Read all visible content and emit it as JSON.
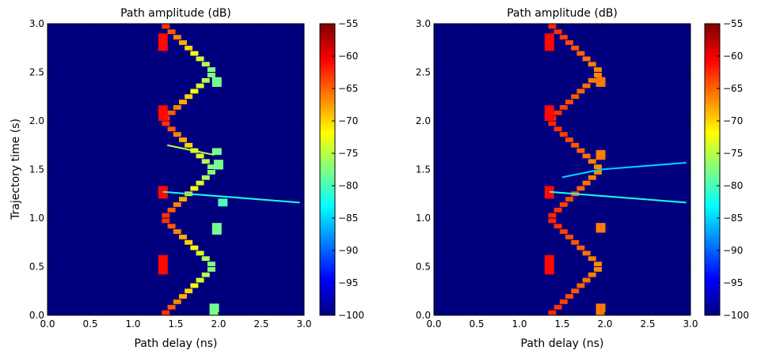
{
  "chart_data": [
    {
      "type": "heatmap",
      "title": "Path amplitude (dB)",
      "xlabel": "Path delay (ns)",
      "ylabel": "Trajectory time (s)",
      "xlim": [
        0.0,
        3.0
      ],
      "ylim": [
        0.0,
        3.0
      ],
      "xticks": [
        "0.0",
        "0.5",
        "1.0",
        "1.5",
        "2.0",
        "2.5",
        "3.0"
      ],
      "yticks": [
        "0.0",
        "0.5",
        "1.0",
        "1.5",
        "2.0",
        "2.5",
        "3.0"
      ],
      "background_db": -100,
      "colorbar": {
        "min": -100,
        "max": -55,
        "ticks": [
          "-55",
          "-60",
          "-65",
          "-70",
          "-75",
          "-80",
          "-85",
          "-90",
          "-95",
          "-100"
        ],
        "colormap": "jet"
      },
      "segments": [
        {
          "delay": [
            1.35,
            1.95
          ],
          "time": [
            0.0,
            0.5
          ],
          "db_start": -62,
          "db_end": -78
        },
        {
          "delay": [
            1.95,
            1.35
          ],
          "time": [
            0.5,
            1.0
          ],
          "db_start": -78,
          "db_end": -62
        },
        {
          "delay": [
            1.35,
            1.95
          ],
          "time": [
            1.0,
            1.5
          ],
          "db_start": -62,
          "db_end": -78
        },
        {
          "delay": [
            1.95,
            1.35
          ],
          "time": [
            1.5,
            2.0
          ],
          "db_start": -78,
          "db_end": -62
        },
        {
          "delay": [
            1.35,
            1.95
          ],
          "time": [
            2.0,
            2.5
          ],
          "db_start": -62,
          "db_end": -78
        },
        {
          "delay": [
            1.95,
            1.35
          ],
          "time": [
            2.5,
            3.0
          ],
          "db_start": -78,
          "db_end": -62
        }
      ],
      "blocks": [
        {
          "delay": 1.35,
          "time": [
            0.42,
            0.62
          ],
          "db": -61
        },
        {
          "delay": 1.35,
          "time": [
            1.2,
            1.33
          ],
          "db": -61
        },
        {
          "delay": 1.35,
          "time": [
            2.0,
            2.16
          ],
          "db": -61
        },
        {
          "delay": 1.35,
          "time": [
            2.72,
            2.9
          ],
          "db": -61
        },
        {
          "delay": 1.95,
          "time": [
            0.0,
            0.12
          ],
          "db": -78
        },
        {
          "delay": 1.98,
          "time": [
            0.83,
            0.95
          ],
          "db": -78
        },
        {
          "delay": 2.05,
          "time": [
            1.12,
            1.2
          ],
          "db": -80
        },
        {
          "delay": 2.0,
          "time": [
            1.5,
            1.6
          ],
          "db": -78
        },
        {
          "delay": 1.98,
          "time": [
            1.65,
            1.72
          ],
          "db": -78
        },
        {
          "delay": 1.98,
          "time": [
            2.35,
            2.45
          ],
          "db": -78
        }
      ],
      "streaks": [
        {
          "points": [
            [
              1.35,
              1.27
            ],
            [
              2.95,
              1.16
            ]
          ],
          "db": -82,
          "dashed_from": 2.2
        },
        {
          "points": [
            [
              1.4,
              1.75
            ],
            [
              1.95,
              1.65
            ]
          ],
          "db": -75
        }
      ]
    },
    {
      "type": "heatmap",
      "title": "Path amplitude (dB)",
      "xlabel": "Path delay (ns)",
      "ylabel": "",
      "xlim": [
        0.0,
        3.0
      ],
      "ylim": [
        0.0,
        3.0
      ],
      "xticks": [
        "0.0",
        "0.5",
        "1.0",
        "1.5",
        "2.0",
        "2.5",
        "3.0"
      ],
      "yticks": [
        "0.0",
        "0.5",
        "1.0",
        "1.5",
        "2.0",
        "2.5",
        "3.0"
      ],
      "background_db": -100,
      "colorbar": {
        "min": -100,
        "max": -55,
        "ticks": [
          "-55",
          "-60",
          "-65",
          "-70",
          "-75",
          "-80",
          "-85",
          "-90",
          "-95",
          "-100"
        ],
        "colormap": "jet"
      },
      "segments": [
        {
          "delay": [
            1.35,
            1.95
          ],
          "time": [
            0.0,
            0.5
          ],
          "db_start": -62,
          "db_end": -67
        },
        {
          "delay": [
            1.95,
            1.35
          ],
          "time": [
            0.5,
            1.0
          ],
          "db_start": -67,
          "db_end": -62
        },
        {
          "delay": [
            1.35,
            1.95
          ],
          "time": [
            1.0,
            1.5
          ],
          "db_start": -62,
          "db_end": -67
        },
        {
          "delay": [
            1.95,
            1.35
          ],
          "time": [
            1.5,
            2.0
          ],
          "db_start": -67,
          "db_end": -62
        },
        {
          "delay": [
            1.35,
            1.95
          ],
          "time": [
            2.0,
            2.5
          ],
          "db_start": -62,
          "db_end": -67
        },
        {
          "delay": [
            1.95,
            1.35
          ],
          "time": [
            2.5,
            3.0
          ],
          "db_start": -67,
          "db_end": -62
        }
      ],
      "blocks": [
        {
          "delay": 1.35,
          "time": [
            0.42,
            0.62
          ],
          "db": -61
        },
        {
          "delay": 1.35,
          "time": [
            1.2,
            1.33
          ],
          "db": -61
        },
        {
          "delay": 1.35,
          "time": [
            2.0,
            2.16
          ],
          "db": -61
        },
        {
          "delay": 1.35,
          "time": [
            2.72,
            2.9
          ],
          "db": -61
        },
        {
          "delay": 1.95,
          "time": [
            0.0,
            0.12
          ],
          "db": -66
        },
        {
          "delay": 1.95,
          "time": [
            0.85,
            0.95
          ],
          "db": -66
        },
        {
          "delay": 1.95,
          "time": [
            1.6,
            1.7
          ],
          "db": -66
        },
        {
          "delay": 1.95,
          "time": [
            2.35,
            2.45
          ],
          "db": -66
        }
      ],
      "streaks": [
        {
          "points": [
            [
              1.35,
              1.27
            ],
            [
              2.95,
              1.16
            ]
          ],
          "db": -82,
          "dashed_from": 2.2
        },
        {
          "points": [
            [
              1.5,
              1.42
            ],
            [
              1.95,
              1.5
            ],
            [
              2.95,
              1.57
            ]
          ],
          "db": -85,
          "dashed_from": 2.4
        }
      ]
    }
  ]
}
